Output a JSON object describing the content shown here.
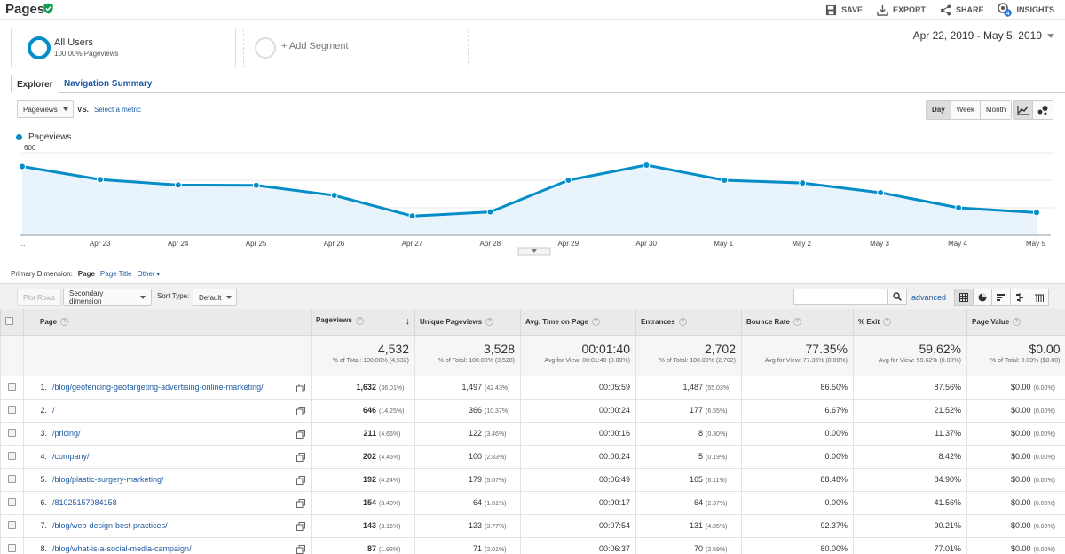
{
  "header": {
    "title": "Pages",
    "actions": [
      {
        "label": "SAVE",
        "icon": "save-icon"
      },
      {
        "label": "EXPORT",
        "icon": "export-icon"
      },
      {
        "label": "SHARE",
        "icon": "share-icon"
      },
      {
        "label": "INSIGHTS",
        "icon": "insights-icon",
        "badge": "4"
      }
    ]
  },
  "segments": {
    "active": {
      "title": "All Users",
      "subtitle": "100.00% Pageviews"
    },
    "add_label": "+ Add Segment"
  },
  "date_range": "Apr 22, 2019 - May 5, 2019",
  "tabs": {
    "explorer": "Explorer",
    "nav_summary": "Navigation Summary"
  },
  "metric": {
    "selected": "Pageviews",
    "vs": "VS.",
    "select_metric": "Select a metric"
  },
  "granularity": {
    "day": "Day",
    "week": "Week",
    "month": "Month"
  },
  "chart_data": {
    "type": "area",
    "series": [
      {
        "name": "Pageviews",
        "values": [
          500,
          405,
          365,
          363,
          290,
          140,
          170,
          400,
          510,
          400,
          380,
          310,
          200,
          165
        ]
      }
    ],
    "categories": [
      "...",
      "Apr 23",
      "Apr 24",
      "Apr 25",
      "Apr 26",
      "Apr 27",
      "Apr 28",
      "Apr 29",
      "Apr 30",
      "May 1",
      "May 2",
      "May 3",
      "May 4",
      "May 5"
    ],
    "yticks": [
      "600",
      "400",
      "200"
    ],
    "ylim": [
      0,
      600
    ],
    "color": "#058dc7",
    "grid": true
  },
  "primary_dimension": {
    "label": "Primary Dimension:",
    "current": "Page",
    "options": [
      "Page Title",
      "Other"
    ]
  },
  "toolbar": {
    "plot_rows": "Plot Rows",
    "secondary": "Secondary dimension",
    "sort_label": "Sort Type:",
    "sort_value": "Default",
    "advanced": "advanced"
  },
  "table": {
    "headers": {
      "page": "Page",
      "pageviews": "Pageviews",
      "unique": "Unique Pageviews",
      "avg_time": "Avg. Time on Page",
      "entrances": "Entrances",
      "bounce": "Bounce Rate",
      "exit": "% Exit",
      "value": "Page Value"
    },
    "totals": {
      "pageviews": {
        "value": "4,532",
        "sub": "% of Total: 100.00% (4,532)"
      },
      "unique": {
        "value": "3,528",
        "sub": "% of Total: 100.00% (3,528)"
      },
      "avg_time": {
        "value": "00:01:40",
        "sub": "Avg for View: 00:01:40 (0.00%)"
      },
      "entrances": {
        "value": "2,702",
        "sub": "% of Total: 100.00% (2,702)"
      },
      "bounce": {
        "value": "77.35%",
        "sub": "Avg for View: 77.35% (0.00%)"
      },
      "exit": {
        "value": "59.62%",
        "sub": "Avg for View: 59.62% (0.00%)"
      },
      "value": {
        "value": "$0.00",
        "sub": "% of Total: 0.00% ($0.00)"
      }
    },
    "rows": [
      {
        "n": "1.",
        "page": "/blog/geofencing-geotargeting-advertising-online-marketing/",
        "pv": "1,632",
        "pv_pct": "(36.01%)",
        "upv": "1,497",
        "upv_pct": "(42.43%)",
        "time": "00:05:59",
        "ent": "1,487",
        "ent_pct": "(55.03%)",
        "bounce": "86.50%",
        "exit": "87.56%",
        "val": "$0.00",
        "val_pct": "(0.00%)"
      },
      {
        "n": "2.",
        "page": "/",
        "pv": "646",
        "pv_pct": "(14.25%)",
        "upv": "366",
        "upv_pct": "(10.37%)",
        "time": "00:00:24",
        "ent": "177",
        "ent_pct": "(6.55%)",
        "bounce": "6.67%",
        "exit": "21.52%",
        "val": "$0.00",
        "val_pct": "(0.00%)"
      },
      {
        "n": "3.",
        "page": "/pricing/",
        "pv": "211",
        "pv_pct": "(4.66%)",
        "upv": "122",
        "upv_pct": "(3.46%)",
        "time": "00:00:16",
        "ent": "8",
        "ent_pct": "(0.30%)",
        "bounce": "0.00%",
        "exit": "11.37%",
        "val": "$0.00",
        "val_pct": "(0.00%)"
      },
      {
        "n": "4.",
        "page": "/company/",
        "pv": "202",
        "pv_pct": "(4.46%)",
        "upv": "100",
        "upv_pct": "(2.83%)",
        "time": "00:00:24",
        "ent": "5",
        "ent_pct": "(0.19%)",
        "bounce": "0.00%",
        "exit": "8.42%",
        "val": "$0.00",
        "val_pct": "(0.00%)"
      },
      {
        "n": "5.",
        "page": "/blog/plastic-surgery-marketing/",
        "pv": "192",
        "pv_pct": "(4.24%)",
        "upv": "179",
        "upv_pct": "(5.07%)",
        "time": "00:06:49",
        "ent": "165",
        "ent_pct": "(6.11%)",
        "bounce": "88.48%",
        "exit": "84.90%",
        "val": "$0.00",
        "val_pct": "(0.00%)"
      },
      {
        "n": "6.",
        "page": "/81025157984158",
        "pv": "154",
        "pv_pct": "(3.40%)",
        "upv": "64",
        "upv_pct": "(1.81%)",
        "time": "00:00:17",
        "ent": "64",
        "ent_pct": "(2.37%)",
        "bounce": "0.00%",
        "exit": "41.56%",
        "val": "$0.00",
        "val_pct": "(0.00%)"
      },
      {
        "n": "7.",
        "page": "/blog/web-design-best-practices/",
        "pv": "143",
        "pv_pct": "(3.16%)",
        "upv": "133",
        "upv_pct": "(3.77%)",
        "time": "00:07:54",
        "ent": "131",
        "ent_pct": "(4.85%)",
        "bounce": "92.37%",
        "exit": "90.21%",
        "val": "$0.00",
        "val_pct": "(0.00%)"
      },
      {
        "n": "8.",
        "page": "/blog/what-is-a-social-media-campaign/",
        "pv": "87",
        "pv_pct": "(1.92%)",
        "upv": "71",
        "upv_pct": "(2.01%)",
        "time": "00:06:37",
        "ent": "70",
        "ent_pct": "(2.59%)",
        "bounce": "80.00%",
        "exit": "77.01%",
        "val": "$0.00",
        "val_pct": "(0.00%)"
      }
    ]
  }
}
